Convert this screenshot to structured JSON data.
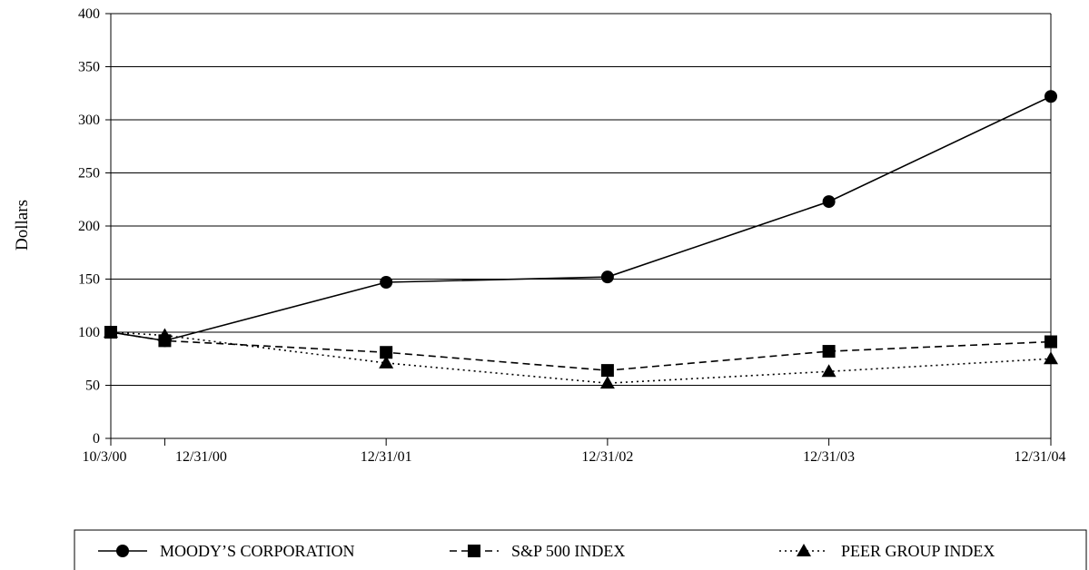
{
  "chart_data": {
    "type": "line",
    "ylabel": "Dollars",
    "xlabel": "",
    "ylim": [
      0,
      400
    ],
    "yticks": [
      0,
      50,
      100,
      150,
      200,
      250,
      300,
      350,
      400
    ],
    "ytick_labels": [
      "0",
      "50",
      "100",
      "150",
      "200",
      "250",
      "300",
      "350",
      "400"
    ],
    "x_dates": [
      "2000-10-03",
      "2000-12-31",
      "2001-12-31",
      "2002-12-31",
      "2003-12-31",
      "2004-12-31"
    ],
    "x_labels": [
      "10/3/00",
      "12/31/00",
      "12/31/01",
      "12/31/02",
      "12/31/03",
      "12/31/04"
    ],
    "grid": true,
    "legend_position": "bottom",
    "series": [
      {
        "name": "MOODY’S CORPORATION",
        "marker": "circle",
        "dash": "solid",
        "values": [
          100,
          92,
          147,
          152,
          223,
          322
        ]
      },
      {
        "name": "S&P 500 INDEX",
        "marker": "square",
        "dash": "dashed",
        "values": [
          100,
          92,
          81,
          64,
          82,
          91
        ]
      },
      {
        "name": "PEER GROUP INDEX",
        "marker": "triangle",
        "dash": "dotted",
        "values": [
          100,
          97,
          71,
          52,
          63,
          75
        ]
      }
    ],
    "colors": {
      "line": "#000000",
      "grid": "#000000"
    }
  }
}
